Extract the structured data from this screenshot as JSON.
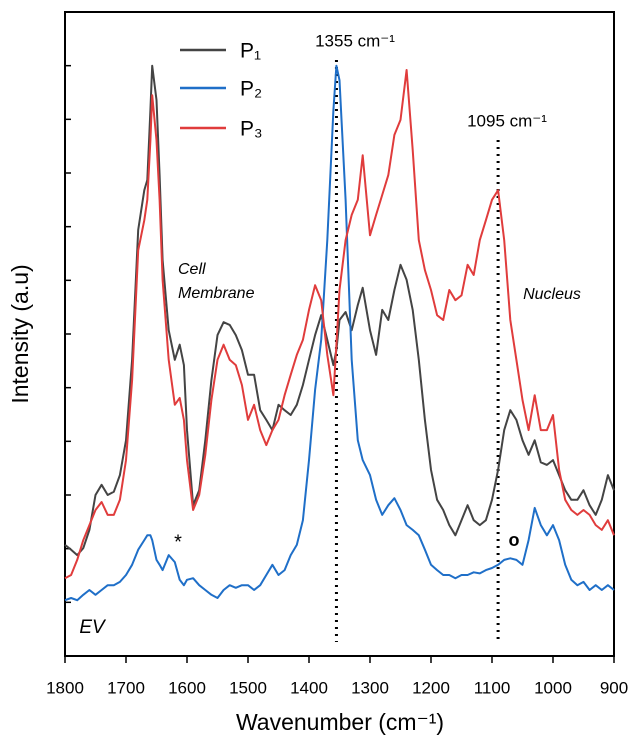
{
  "chart_data": {
    "type": "line",
    "xlabel": "Wavenumber (cm⁻¹)",
    "ylabel": "Intensity (a.u)",
    "xlim": [
      1800,
      900
    ],
    "xticks": [
      1800,
      1700,
      1600,
      1500,
      1400,
      1300,
      1200,
      1100,
      1000,
      900
    ],
    "ylim": [
      0,
      12
    ],
    "yticks": [
      1,
      2,
      3,
      4,
      5,
      6,
      7,
      8,
      9,
      10,
      11
    ],
    "legend": "upper left",
    "vlines": [
      1355,
      1090
    ],
    "annotations": [
      "1355 cm⁻¹",
      "1095 cm⁻¹",
      "Cell",
      "Membrane",
      "Nucleus",
      "EV",
      "*",
      "o"
    ],
    "x": [
      1800,
      1790,
      1780,
      1770,
      1760,
      1750,
      1740,
      1730,
      1720,
      1710,
      1700,
      1690,
      1680,
      1670,
      1665,
      1660,
      1657,
      1650,
      1645,
      1640,
      1630,
      1620,
      1612,
      1605,
      1600,
      1590,
      1580,
      1570,
      1560,
      1550,
      1540,
      1530,
      1520,
      1510,
      1500,
      1490,
      1480,
      1470,
      1460,
      1450,
      1440,
      1430,
      1420,
      1410,
      1400,
      1390,
      1380,
      1370,
      1360,
      1355,
      1350,
      1340,
      1330,
      1320,
      1312,
      1300,
      1290,
      1280,
      1270,
      1260,
      1250,
      1240,
      1230,
      1220,
      1210,
      1200,
      1190,
      1180,
      1170,
      1160,
      1150,
      1140,
      1130,
      1120,
      1110,
      1100,
      1090,
      1080,
      1070,
      1060,
      1050,
      1040,
      1030,
      1020,
      1010,
      1000,
      990,
      980,
      970,
      960,
      950,
      940,
      930,
      920,
      910,
      900
    ],
    "series": [
      {
        "name": "P₁",
        "color": "#444444",
        "values": [
          2.07,
          1.98,
          1.88,
          2.01,
          2.35,
          3.0,
          3.19,
          3.0,
          3.06,
          3.37,
          4.02,
          5.52,
          7.94,
          8.68,
          8.87,
          10.17,
          11.0,
          10.36,
          8.96,
          7.38,
          6.07,
          5.52,
          5.8,
          5.42,
          4.21,
          2.81,
          3.09,
          4.02,
          5.14,
          5.98,
          6.22,
          6.17,
          5.98,
          5.7,
          5.24,
          5.24,
          4.58,
          4.4,
          4.21,
          4.68,
          4.58,
          4.49,
          4.68,
          5.05,
          5.52,
          5.98,
          6.35,
          5.89,
          5.42,
          5.7,
          6.26,
          6.41,
          6.07,
          6.54,
          6.86,
          6.07,
          5.61,
          6.45,
          6.26,
          6.82,
          7.29,
          7.01,
          6.45,
          5.52,
          4.4,
          3.47,
          2.91,
          2.72,
          2.44,
          2.25,
          2.53,
          2.81,
          2.53,
          2.44,
          2.53,
          2.91,
          3.47,
          4.21,
          4.58,
          4.4,
          4.02,
          3.75,
          4.02,
          3.61,
          3.56,
          3.65,
          3.37,
          3.09,
          2.91,
          2.91,
          3.09,
          2.81,
          2.63,
          2.91,
          3.37,
          3.09
        ]
      },
      {
        "name": "P₂",
        "color": "#1f6fc8",
        "values": [
          1.04,
          1.08,
          1.04,
          1.14,
          1.23,
          1.14,
          1.23,
          1.32,
          1.32,
          1.38,
          1.51,
          1.7,
          1.98,
          2.16,
          2.25,
          2.25,
          2.16,
          1.79,
          1.7,
          1.6,
          1.88,
          1.75,
          1.42,
          1.32,
          1.42,
          1.45,
          1.32,
          1.23,
          1.14,
          1.08,
          1.23,
          1.32,
          1.27,
          1.32,
          1.32,
          1.23,
          1.32,
          1.51,
          1.7,
          1.51,
          1.6,
          1.88,
          2.07,
          2.53,
          3.65,
          4.96,
          5.89,
          7.75,
          10.17,
          11.0,
          10.73,
          8.5,
          5.52,
          4.02,
          3.65,
          3.37,
          2.91,
          2.63,
          2.81,
          2.94,
          2.72,
          2.44,
          2.35,
          2.25,
          1.98,
          1.7,
          1.6,
          1.51,
          1.51,
          1.45,
          1.51,
          1.51,
          1.56,
          1.54,
          1.6,
          1.64,
          1.7,
          1.79,
          1.82,
          1.79,
          1.7,
          2.16,
          2.76,
          2.44,
          2.25,
          2.44,
          2.16,
          1.7,
          1.42,
          1.32,
          1.38,
          1.23,
          1.32,
          1.23,
          1.32,
          1.23
        ]
      },
      {
        "name": "P₃",
        "color": "#e03c3c",
        "values": [
          1.45,
          1.51,
          1.79,
          2.16,
          2.44,
          2.72,
          2.87,
          2.63,
          2.63,
          2.91,
          3.65,
          5.14,
          7.56,
          8.12,
          8.5,
          9.61,
          10.45,
          9.61,
          8.5,
          7.01,
          5.52,
          4.68,
          4.81,
          4.4,
          3.65,
          2.72,
          3.0,
          3.75,
          4.77,
          5.52,
          5.8,
          5.52,
          5.42,
          5.05,
          4.4,
          4.68,
          4.21,
          3.93,
          4.21,
          4.4,
          4.86,
          5.24,
          5.61,
          5.89,
          6.45,
          6.91,
          6.63,
          5.61,
          4.86,
          5.8,
          6.82,
          7.75,
          8.22,
          8.5,
          9.33,
          7.84,
          8.22,
          8.59,
          8.96,
          9.71,
          9.99,
          10.92,
          9.43,
          7.75,
          7.19,
          6.82,
          6.35,
          6.26,
          6.82,
          6.63,
          6.72,
          7.29,
          7.1,
          7.75,
          8.12,
          8.5,
          8.68,
          7.75,
          6.26,
          5.52,
          4.77,
          4.21,
          4.86,
          4.21,
          4.21,
          4.49,
          3.47,
          2.91,
          2.72,
          2.63,
          2.72,
          2.63,
          2.44,
          2.35,
          2.53,
          2.25
        ]
      }
    ]
  }
}
